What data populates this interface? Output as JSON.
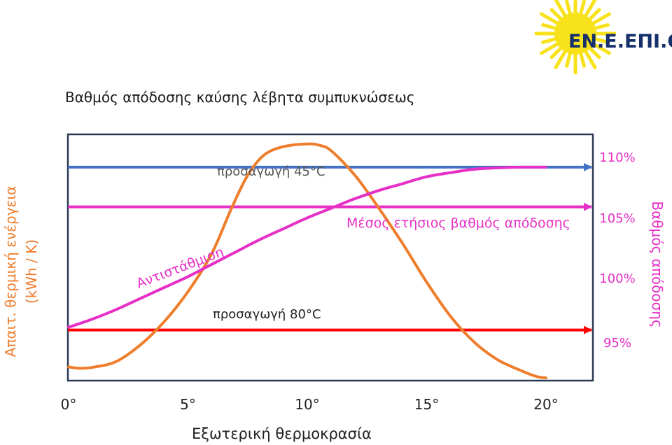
{
  "logo": {
    "text": "ΕΝ.Ε.ΕΠΙ.Θ.Ε.",
    "sun_color": "#f7e21b",
    "text_color": "#15306b"
  },
  "chart_data": {
    "type": "line",
    "title": "Βαθμός απόδοσης καύσης λέβητα συμπυκνώσεως",
    "xlabel": "Εξωτερική θερμοκρασία",
    "ylabel_left": "Απαιτ. θερμική ενέργεια\n(kWh / K)",
    "ylabel_right": "Βαθμός απόδοσης",
    "x_ticks": [
      "0°",
      "5°",
      "10°",
      "15°",
      "20°"
    ],
    "x_range": [
      0,
      20
    ],
    "y_right_ticks": [
      "95%",
      "100%",
      "105%",
      "110%"
    ],
    "y_right_range": [
      93,
      111
    ],
    "grid": false,
    "series": [
      {
        "name": "Αντιστάθμιση",
        "color": "#ee7d2c",
        "axis": "left",
        "x": [
          0,
          0.5,
          1.1,
          2,
          3,
          4,
          5,
          6,
          6.8,
          7.5,
          8.2,
          9,
          10,
          10.5,
          11,
          12,
          13,
          14,
          15,
          16,
          17,
          18,
          19,
          19.6,
          20
        ],
        "y": [
          94,
          93.9,
          94,
          94.4,
          95.6,
          97.3,
          99.5,
          102.3,
          105.5,
          108,
          109.5,
          110.1,
          110.3,
          110.2,
          109.8,
          108,
          105.6,
          103,
          100.2,
          97.7,
          95.8,
          94.5,
          93.7,
          93.3,
          93.2
        ]
      },
      {
        "name": "Μέσος ετήσιος βαθμός απόδοσης",
        "color": "#e62fc6",
        "axis": "right",
        "x": [
          0,
          1,
          2,
          3,
          4,
          5,
          6,
          7,
          8,
          9,
          10,
          11,
          12,
          13,
          14,
          15,
          16,
          17,
          18,
          19,
          20
        ],
        "y": [
          96.9,
          97.5,
          98.2,
          99,
          99.8,
          100.6,
          101.5,
          102.4,
          103.3,
          104.1,
          104.9,
          105.6,
          106.3,
          106.9,
          107.4,
          107.9,
          108.2,
          108.45,
          108.55,
          108.6,
          108.6
        ]
      }
    ],
    "reference_lines": [
      {
        "label": "προσαγωγή 45°C",
        "y": 108.6,
        "color": "#4472c4"
      },
      {
        "label": "",
        "y": 105.7,
        "color": "#e62fc6"
      },
      {
        "label": "προσαγωγή 80°C",
        "y": 96.7,
        "color": "#ff0000"
      }
    ]
  }
}
